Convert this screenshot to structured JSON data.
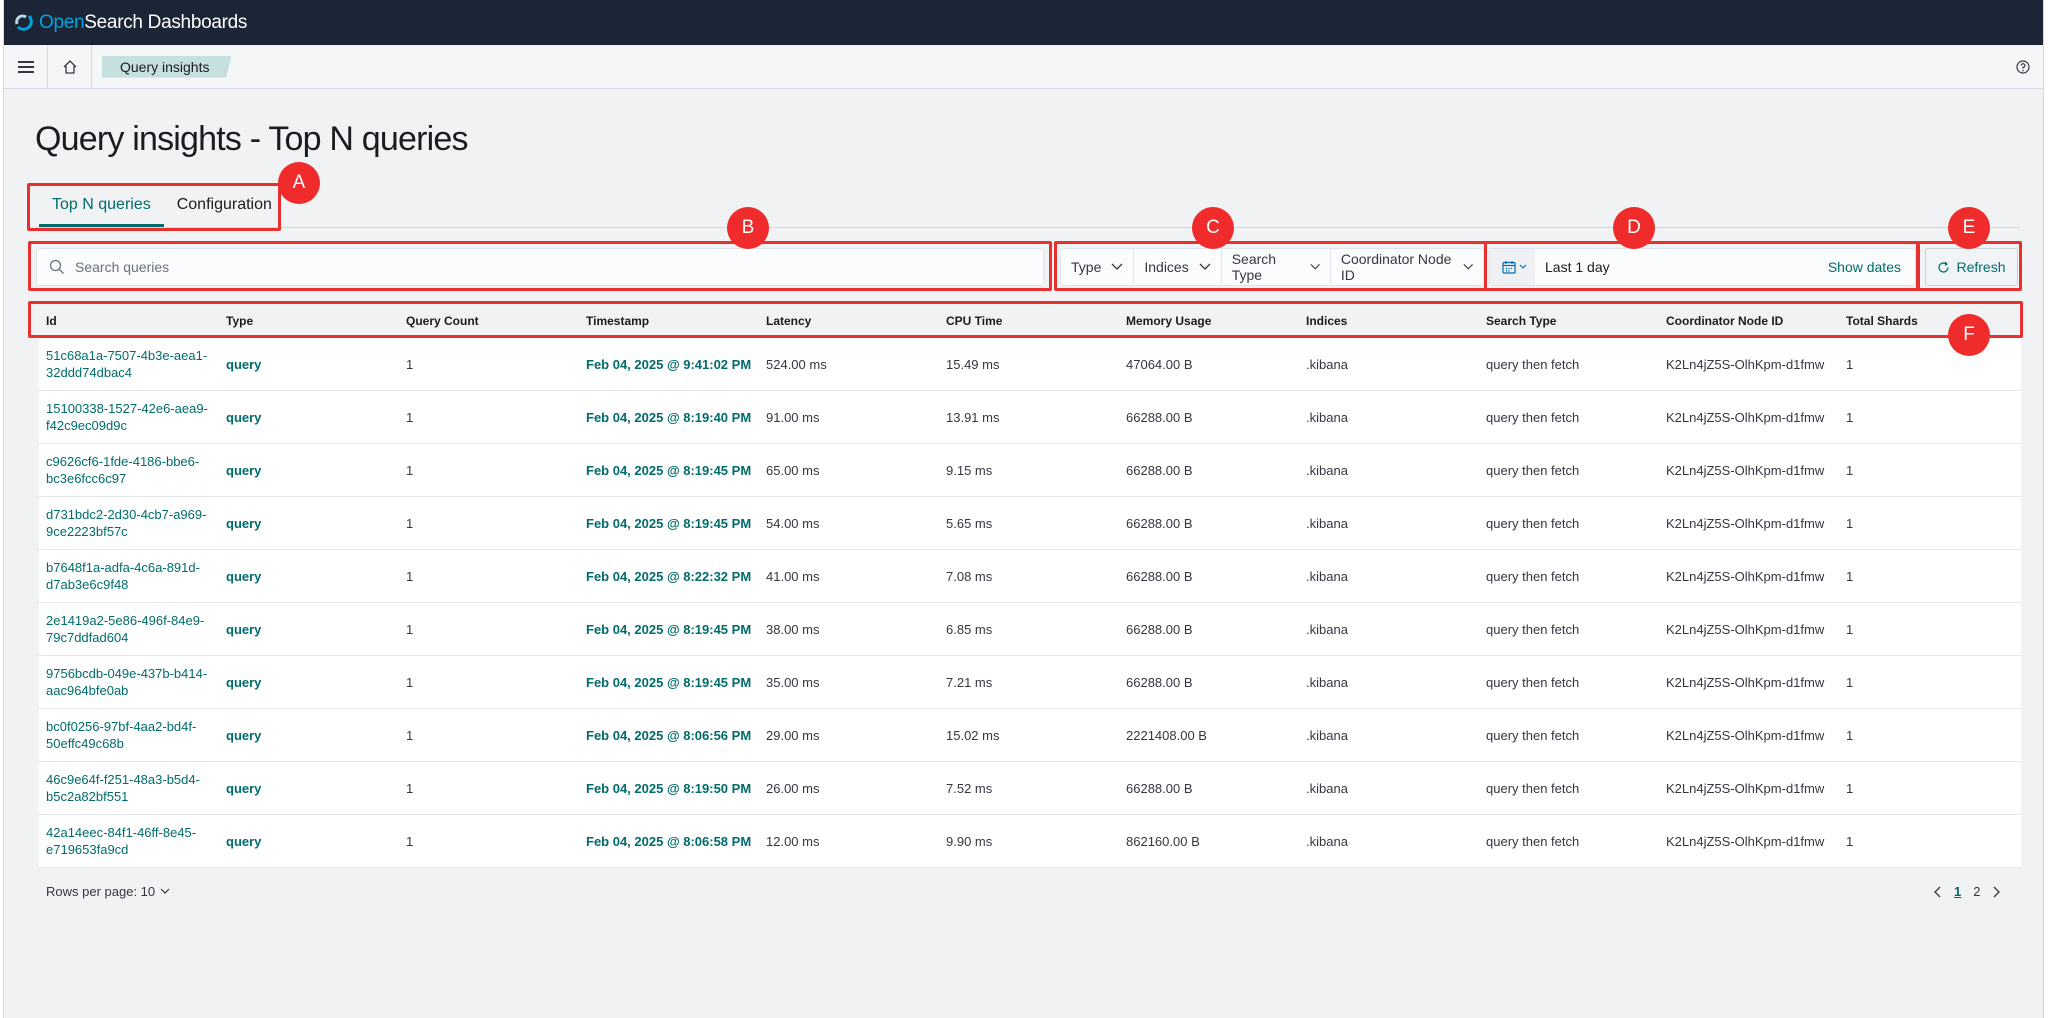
{
  "app": {
    "brand_open": "Open",
    "brand_rest": "Search Dashboards"
  },
  "breadcrumb": {
    "current": "Query insights"
  },
  "page": {
    "title": "Query insights - Top N queries"
  },
  "tabs": [
    {
      "label": "Top N queries",
      "active": true
    },
    {
      "label": "Configuration",
      "active": false
    }
  ],
  "search": {
    "placeholder": "Search queries",
    "value": ""
  },
  "filters": [
    {
      "label": "Type"
    },
    {
      "label": "Indices"
    },
    {
      "label": "Search Type"
    },
    {
      "label": "Coordinator Node ID"
    }
  ],
  "datepicker": {
    "range": "Last 1 day",
    "show_dates": "Show dates"
  },
  "refresh": {
    "label": "Refresh"
  },
  "markers": {
    "a": "A",
    "b": "B",
    "c": "C",
    "d": "D",
    "e": "E",
    "f": "F"
  },
  "table": {
    "columns": [
      "Id",
      "Type",
      "Query Count",
      "Timestamp",
      "Latency",
      "CPU Time",
      "Memory Usage",
      "Indices",
      "Search Type",
      "Coordinator Node ID",
      "Total Shards"
    ],
    "rows": [
      {
        "id_line1": "51c68a1a-7507-4b3e-aea1-",
        "id_line2": "32ddd74dbac4",
        "type": "query",
        "count": "1",
        "timestamp": "Feb 04, 2025 @ 9:41:02 PM",
        "latency": "524.00 ms",
        "cpu": "15.49 ms",
        "memory": "47064.00 B",
        "indices": ".kibana",
        "search_type": "query then fetch",
        "node": "K2Ln4jZ5S-OlhKpm-d1fmw",
        "shards": "1"
      },
      {
        "id_line1": "15100338-1527-42e6-aea9-",
        "id_line2": "f42c9ec09d9c",
        "type": "query",
        "count": "1",
        "timestamp": "Feb 04, 2025 @ 8:19:40 PM",
        "latency": "91.00 ms",
        "cpu": "13.91 ms",
        "memory": "66288.00 B",
        "indices": ".kibana",
        "search_type": "query then fetch",
        "node": "K2Ln4jZ5S-OlhKpm-d1fmw",
        "shards": "1"
      },
      {
        "id_line1": "c9626cf6-1fde-4186-bbe6-",
        "id_line2": "bc3e6fcc6c97",
        "type": "query",
        "count": "1",
        "timestamp": "Feb 04, 2025 @ 8:19:45 PM",
        "latency": "65.00 ms",
        "cpu": "9.15 ms",
        "memory": "66288.00 B",
        "indices": ".kibana",
        "search_type": "query then fetch",
        "node": "K2Ln4jZ5S-OlhKpm-d1fmw",
        "shards": "1"
      },
      {
        "id_line1": "d731bdc2-2d30-4cb7-a969-",
        "id_line2": "9ce2223bf57c",
        "type": "query",
        "count": "1",
        "timestamp": "Feb 04, 2025 @ 8:19:45 PM",
        "latency": "54.00 ms",
        "cpu": "5.65 ms",
        "memory": "66288.00 B",
        "indices": ".kibana",
        "search_type": "query then fetch",
        "node": "K2Ln4jZ5S-OlhKpm-d1fmw",
        "shards": "1"
      },
      {
        "id_line1": "b7648f1a-adfa-4c6a-891d-",
        "id_line2": "d7ab3e6c9f48",
        "type": "query",
        "count": "1",
        "timestamp": "Feb 04, 2025 @ 8:22:32 PM",
        "latency": "41.00 ms",
        "cpu": "7.08 ms",
        "memory": "66288.00 B",
        "indices": ".kibana",
        "search_type": "query then fetch",
        "node": "K2Ln4jZ5S-OlhKpm-d1fmw",
        "shards": "1"
      },
      {
        "id_line1": "2e1419a2-5e86-496f-84e9-",
        "id_line2": "79c7ddfad604",
        "type": "query",
        "count": "1",
        "timestamp": "Feb 04, 2025 @ 8:19:45 PM",
        "latency": "38.00 ms",
        "cpu": "6.85 ms",
        "memory": "66288.00 B",
        "indices": ".kibana",
        "search_type": "query then fetch",
        "node": "K2Ln4jZ5S-OlhKpm-d1fmw",
        "shards": "1"
      },
      {
        "id_line1": "9756bcdb-049e-437b-b414-",
        "id_line2": "aac964bfe0ab",
        "type": "query",
        "count": "1",
        "timestamp": "Feb 04, 2025 @ 8:19:45 PM",
        "latency": "35.00 ms",
        "cpu": "7.21 ms",
        "memory": "66288.00 B",
        "indices": ".kibana",
        "search_type": "query then fetch",
        "node": "K2Ln4jZ5S-OlhKpm-d1fmw",
        "shards": "1"
      },
      {
        "id_line1": "bc0f0256-97bf-4aa2-bd4f-",
        "id_line2": "50effc49c68b",
        "type": "query",
        "count": "1",
        "timestamp": "Feb 04, 2025 @ 8:06:56 PM",
        "latency": "29.00 ms",
        "cpu": "15.02 ms",
        "memory": "2221408.00 B",
        "indices": ".kibana",
        "search_type": "query then fetch",
        "node": "K2Ln4jZ5S-OlhKpm-d1fmw",
        "shards": "1"
      },
      {
        "id_line1": "46c9e64f-f251-48a3-b5d4-",
        "id_line2": "b5c2a82bf551",
        "type": "query",
        "count": "1",
        "timestamp": "Feb 04, 2025 @ 8:19:50 PM",
        "latency": "26.00 ms",
        "cpu": "7.52 ms",
        "memory": "66288.00 B",
        "indices": ".kibana",
        "search_type": "query then fetch",
        "node": "K2Ln4jZ5S-OlhKpm-d1fmw",
        "shards": "1"
      },
      {
        "id_line1": "42a14eec-84f1-46ff-8e45-",
        "id_line2": "e719653fa9cd",
        "type": "query",
        "count": "1",
        "timestamp": "Feb 04, 2025 @ 8:06:58 PM",
        "latency": "12.00 ms",
        "cpu": "9.90 ms",
        "memory": "862160.00 B",
        "indices": ".kibana",
        "search_type": "query then fetch",
        "node": "K2Ln4jZ5S-OlhKpm-d1fmw",
        "shards": "1"
      }
    ]
  },
  "footer": {
    "rows_per_page": "Rows per page: 10",
    "pages": [
      "1",
      "2"
    ],
    "current_page": "1"
  },
  "colors": {
    "header_bg": "#1b2535",
    "accent": "#006c6c",
    "annotation": "#e8302e"
  }
}
